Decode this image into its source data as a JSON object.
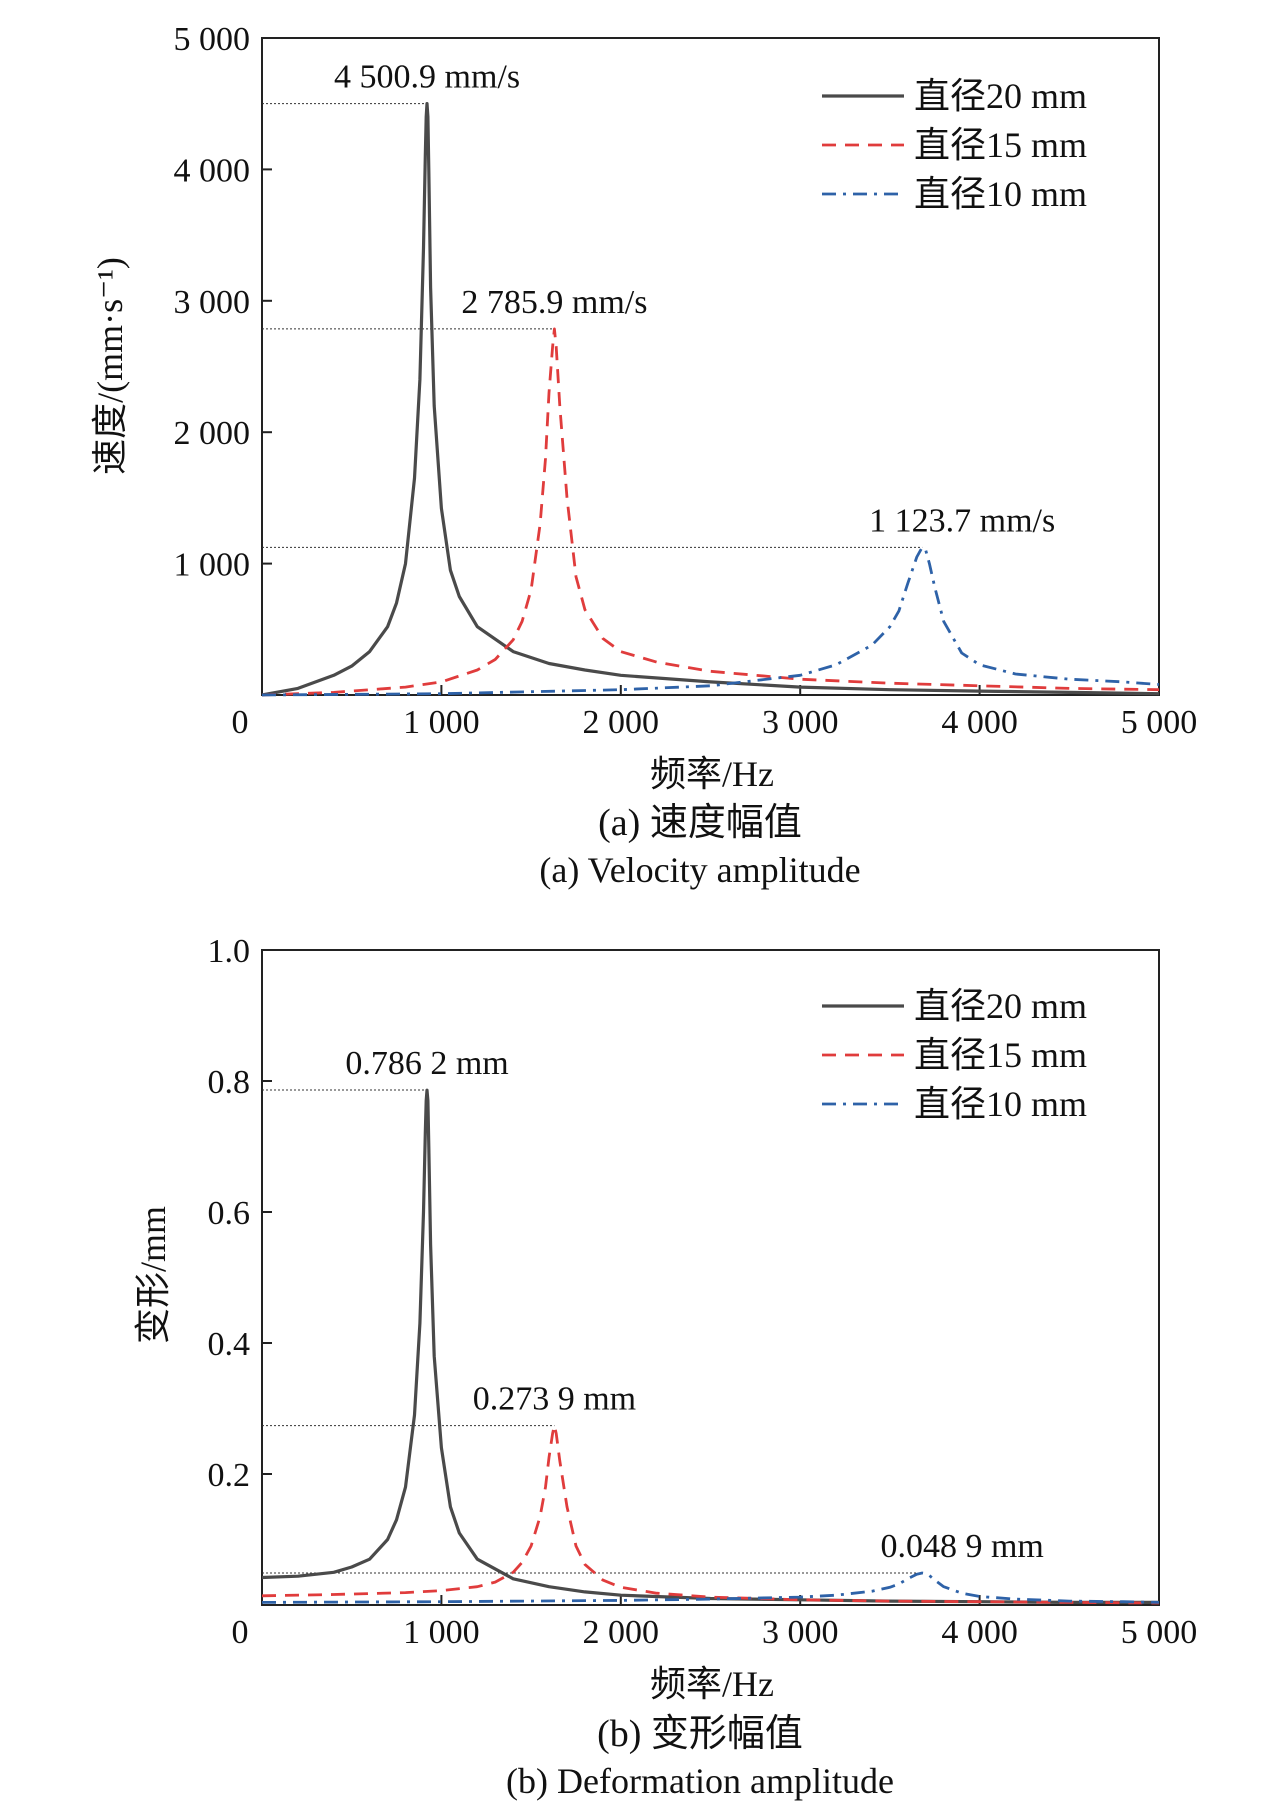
{
  "colors": {
    "d20": "#4a4a4a",
    "d15": "#e03c3c",
    "d10": "#2e62a8",
    "frame": "#222222",
    "guide": "#333333"
  },
  "chart_data": [
    {
      "type": "line",
      "caption_cn": "(a) 速度幅值",
      "caption_en": "(a) Velocity amplitude",
      "xlabel": "频率/Hz",
      "ylabel": "速度/(mm·s⁻¹)",
      "xlim": [
        0,
        5000
      ],
      "ylim": [
        0,
        5000
      ],
      "xticks": [
        {
          "value": 0,
          "label": "0"
        },
        {
          "value": 1000,
          "label": "1 000"
        },
        {
          "value": 2000,
          "label": "2 000"
        },
        {
          "value": 3000,
          "label": "3 000"
        },
        {
          "value": 4000,
          "label": "4 000"
        },
        {
          "value": 5000,
          "label": "5 000"
        }
      ],
      "yticks": [
        {
          "value": 1000,
          "label": "1 000"
        },
        {
          "value": 2000,
          "label": "2 000"
        },
        {
          "value": 3000,
          "label": "3 000"
        },
        {
          "value": 4000,
          "label": "4 000"
        },
        {
          "value": 5000,
          "label": "5 000"
        }
      ],
      "legend_position": "top-right",
      "series": [
        {
          "name": "直径20 mm",
          "key": "d20",
          "style": "solid",
          "x": [
            0,
            200,
            400,
            500,
            600,
            700,
            750,
            800,
            850,
            880,
            900,
            910,
            915,
            920,
            925,
            930,
            940,
            960,
            1000,
            1050,
            1100,
            1200,
            1400,
            1600,
            1800,
            2000,
            2500,
            3000,
            3500,
            4000,
            4500,
            5000
          ],
          "y": [
            0,
            50,
            150,
            220,
            330,
            520,
            700,
            1000,
            1650,
            2400,
            3400,
            4100,
            4400,
            4501,
            4400,
            4000,
            3100,
            2200,
            1420,
            950,
            750,
            520,
            330,
            240,
            190,
            150,
            100,
            60,
            40,
            30,
            20,
            10
          ]
        },
        {
          "name": "直径15 mm",
          "key": "d15",
          "style": "dashed",
          "x": [
            0,
            400,
            800,
            1000,
            1200,
            1300,
            1400,
            1450,
            1500,
            1550,
            1580,
            1600,
            1620,
            1630,
            1640,
            1660,
            1700,
            1750,
            1800,
            1900,
            2000,
            2200,
            2500,
            3000,
            3500,
            4000,
            4500,
            5000
          ],
          "y": [
            0,
            20,
            60,
            100,
            190,
            270,
            420,
            560,
            800,
            1300,
            1800,
            2300,
            2650,
            2786,
            2650,
            2200,
            1500,
            900,
            650,
            430,
            330,
            250,
            180,
            120,
            90,
            70,
            50,
            40
          ]
        },
        {
          "name": "直径10 mm",
          "key": "d10",
          "style": "dashdot",
          "x": [
            0,
            1000,
            2000,
            2500,
            3000,
            3200,
            3400,
            3500,
            3550,
            3600,
            3650,
            3680,
            3700,
            3720,
            3750,
            3800,
            3900,
            4000,
            4200,
            4500,
            4800,
            5000
          ],
          "y": [
            0,
            10,
            40,
            70,
            150,
            230,
            380,
            520,
            640,
            850,
            1050,
            1124,
            1100,
            1000,
            820,
            560,
            320,
            230,
            160,
            120,
            100,
            80
          ]
        }
      ],
      "annotations": [
        {
          "label": "4 500.9 mm/s",
          "x": 920,
          "y": 4500.9
        },
        {
          "label": "2 785.9 mm/s",
          "x": 1630,
          "y": 2785.9
        },
        {
          "label": "1 123.7 mm/s",
          "x": 3680,
          "y": 1123.7
        }
      ]
    },
    {
      "type": "line",
      "caption_cn": "(b) 变形幅值",
      "caption_en": "(b) Deformation amplitude",
      "xlabel": "频率/Hz",
      "ylabel": "变形/mm",
      "xlim": [
        0,
        5000
      ],
      "ylim": [
        0,
        1.0
      ],
      "xticks": [
        {
          "value": 0,
          "label": "0"
        },
        {
          "value": 1000,
          "label": "1 000"
        },
        {
          "value": 2000,
          "label": "2 000"
        },
        {
          "value": 3000,
          "label": "3 000"
        },
        {
          "value": 4000,
          "label": "4 000"
        },
        {
          "value": 5000,
          "label": "5 000"
        }
      ],
      "yticks": [
        {
          "value": 0.2,
          "label": "0.2"
        },
        {
          "value": 0.4,
          "label": "0.4"
        },
        {
          "value": 0.6,
          "label": "0.6"
        },
        {
          "value": 0.8,
          "label": "0.8"
        },
        {
          "value": 1.0,
          "label": "1.0"
        }
      ],
      "legend_position": "top-right",
      "series": [
        {
          "name": "直径20 mm",
          "key": "d20",
          "style": "solid",
          "x": [
            0,
            200,
            400,
            500,
            600,
            700,
            750,
            800,
            850,
            880,
            900,
            910,
            915,
            920,
            925,
            930,
            940,
            960,
            1000,
            1050,
            1100,
            1200,
            1400,
            1600,
            1800,
            2000,
            2500,
            3000,
            3500,
            4000,
            4500,
            5000
          ],
          "y": [
            0.042,
            0.044,
            0.05,
            0.058,
            0.07,
            0.1,
            0.13,
            0.18,
            0.29,
            0.43,
            0.6,
            0.72,
            0.77,
            0.786,
            0.77,
            0.7,
            0.55,
            0.38,
            0.24,
            0.15,
            0.11,
            0.07,
            0.04,
            0.028,
            0.02,
            0.015,
            0.01,
            0.008,
            0.006,
            0.005,
            0.004,
            0.004
          ]
        },
        {
          "name": "直径15 mm",
          "key": "d15",
          "style": "dashed",
          "x": [
            0,
            400,
            800,
            1000,
            1200,
            1300,
            1400,
            1450,
            1500,
            1550,
            1580,
            1600,
            1620,
            1630,
            1640,
            1660,
            1700,
            1750,
            1800,
            1900,
            2000,
            2200,
            2500,
            3000,
            3500,
            4000,
            4500,
            5000
          ],
          "y": [
            0.014,
            0.016,
            0.019,
            0.022,
            0.028,
            0.035,
            0.05,
            0.065,
            0.09,
            0.135,
            0.18,
            0.225,
            0.262,
            0.274,
            0.262,
            0.22,
            0.15,
            0.09,
            0.062,
            0.038,
            0.027,
            0.018,
            0.012,
            0.008,
            0.006,
            0.005,
            0.004,
            0.003
          ]
        },
        {
          "name": "直径10 mm",
          "key": "d10",
          "style": "dashdot",
          "x": [
            0,
            1000,
            2000,
            2500,
            3000,
            3200,
            3400,
            3500,
            3550,
            3600,
            3650,
            3680,
            3700,
            3720,
            3750,
            3800,
            3900,
            4000,
            4200,
            4500,
            4800,
            5000
          ],
          "y": [
            0.004,
            0.005,
            0.007,
            0.009,
            0.012,
            0.015,
            0.021,
            0.027,
            0.032,
            0.04,
            0.047,
            0.0489,
            0.048,
            0.045,
            0.038,
            0.028,
            0.018,
            0.013,
            0.009,
            0.006,
            0.005,
            0.004
          ]
        }
      ],
      "annotations": [
        {
          "label": "0.786 2 mm",
          "x": 920,
          "y": 0.7862
        },
        {
          "label": "0.273 9 mm",
          "x": 1630,
          "y": 0.2739
        },
        {
          "label": "0.048 9 mm",
          "x": 3680,
          "y": 0.0489
        }
      ]
    }
  ]
}
